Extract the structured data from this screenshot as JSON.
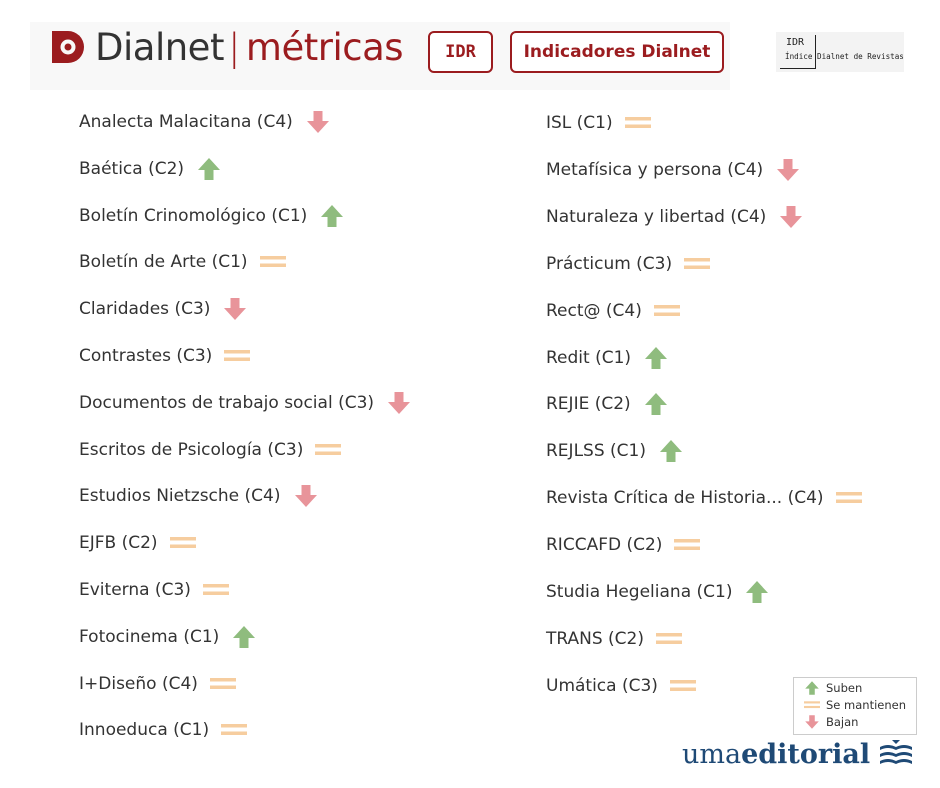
{
  "header": {
    "logo_name": "Dialnet",
    "logo_sep": "|",
    "logo_sub": "métricas",
    "btn_idr": "IDR",
    "btn_indicadores": "Indicadores Dialnet",
    "badge_abbr": "IDR",
    "badge_full": "Índice Dialnet de Revistas"
  },
  "colors": {
    "up": "#8fbc7e",
    "same": "#f6cd9f",
    "down": "#e8949a",
    "brand": "#1f4a76",
    "accent": "#9b1c1f"
  },
  "left_column": [
    {
      "name": "Analecta Malacitana (C4)",
      "trend": "down"
    },
    {
      "name": "Baética (C2)",
      "trend": "up"
    },
    {
      "name": "Boletín Crinomológico (C1)",
      "trend": "up"
    },
    {
      "name": "Boletín de Arte (C1)",
      "trend": "same"
    },
    {
      "name": "Claridades (C3)",
      "trend": "down"
    },
    {
      "name": "Contrastes (C3)",
      "trend": "same"
    },
    {
      "name": "Documentos de trabajo social (C3)",
      "trend": "down"
    },
    {
      "name": "Escritos de Psicología (C3)",
      "trend": "same"
    },
    {
      "name": "Estudios Nietzsche (C4)",
      "trend": "down"
    },
    {
      "name": "EJFB (C2)",
      "trend": "same"
    },
    {
      "name": "Eviterna (C3)",
      "trend": "same"
    },
    {
      "name": "Fotocinema (C1)",
      "trend": "up"
    },
    {
      "name": "I+Diseño (C4)",
      "trend": "same"
    },
    {
      "name": "Innoeduca (C1)",
      "trend": "same"
    }
  ],
  "right_column": [
    {
      "name": "ISL (C1)",
      "trend": "same"
    },
    {
      "name": "Metafísica y persona (C4)",
      "trend": "down"
    },
    {
      "name": "Naturaleza y libertad (C4)",
      "trend": "down"
    },
    {
      "name": "Prácticum (C3)",
      "trend": "same"
    },
    {
      "name": "Rect@ (C4)",
      "trend": "same"
    },
    {
      "name": "Redit (C1)",
      "trend": "up"
    },
    {
      "name": "REJIE (C2)",
      "trend": "up"
    },
    {
      "name": "REJLSS (C1)",
      "trend": "up"
    },
    {
      "name": "Revista Crítica de Historia... (C4)",
      "trend": "same"
    },
    {
      "name": "RICCAFD (C2)",
      "trend": "same"
    },
    {
      "name": "Studia Hegeliana (C1)",
      "trend": "up"
    },
    {
      "name": "TRANS (C2)",
      "trend": "same"
    },
    {
      "name": "Umática (C3)",
      "trend": "same"
    }
  ],
  "legend": {
    "up": "Suben",
    "same": "Se mantienen",
    "down": "Bajan"
  },
  "brand": {
    "part1": "uma",
    "part2": "editorial",
    "icon": "book-stack-icon"
  }
}
